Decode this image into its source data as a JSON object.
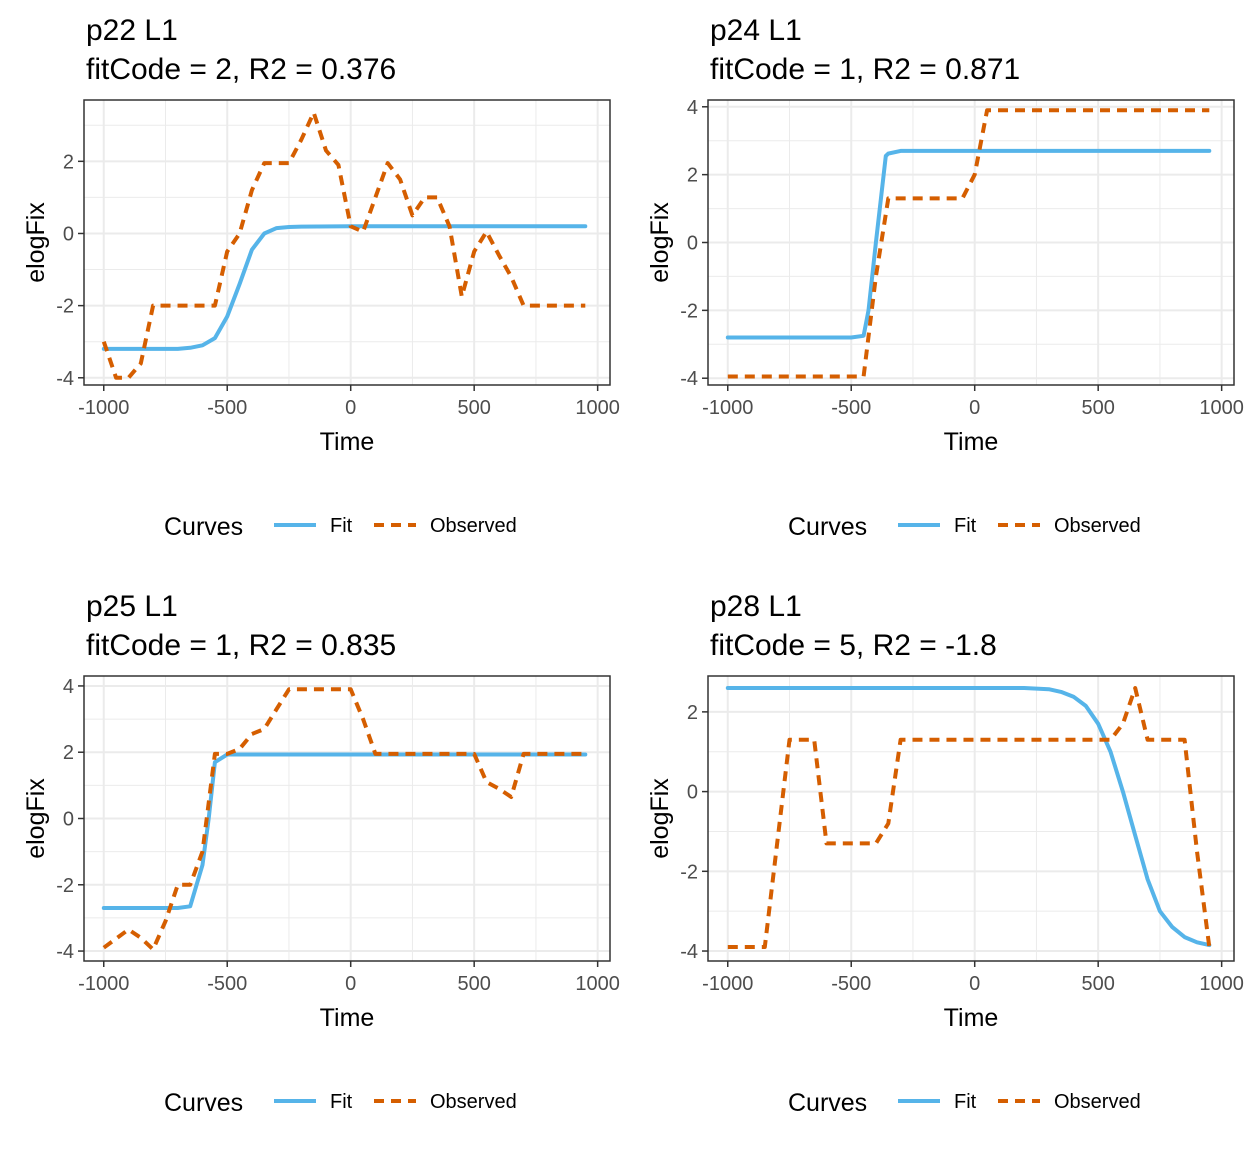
{
  "x_label": "Time",
  "y_label": "elogFix",
  "legend": {
    "title": "Curves",
    "fit_label": "Fit",
    "observed_label": "Observed",
    "placement": "bottom"
  },
  "colors": {
    "fit": "#56B4E9",
    "observed": "#D55E00",
    "grid": "#EBEBEB",
    "axis": "#333333"
  },
  "chart_data": [
    {
      "type": "line",
      "title": "p22 L1",
      "subtitle": "fitCode = 2, R2 = 0.376",
      "xlabel": "Time",
      "ylabel": "elogFix",
      "xlim": [
        -1080,
        1050
      ],
      "ylim": [
        -4.2,
        3.7
      ],
      "x_ticks": [
        -1000,
        -500,
        0,
        500,
        1000
      ],
      "y_ticks": [
        -4,
        -2,
        0,
        2
      ],
      "grid": true,
      "legend_position": "bottom",
      "series": [
        {
          "name": "Fit",
          "style": "solid",
          "x": [
            -1000,
            -900,
            -800,
            -700,
            -650,
            -600,
            -550,
            -500,
            -450,
            -400,
            -350,
            -300,
            -250,
            -200,
            0,
            950
          ],
          "y": [
            -3.2,
            -3.2,
            -3.2,
            -3.2,
            -3.17,
            -3.1,
            -2.9,
            -2.3,
            -1.4,
            -0.45,
            0.0,
            0.15,
            0.18,
            0.19,
            0.2,
            0.2
          ]
        },
        {
          "name": "Observed",
          "style": "dashed",
          "x": [
            -1000,
            -950,
            -900,
            -850,
            -800,
            -750,
            -700,
            -650,
            -600,
            -550,
            -500,
            -450,
            -400,
            -350,
            -300,
            -250,
            -200,
            -150,
            -100,
            -50,
            0,
            50,
            100,
            150,
            200,
            250,
            300,
            350,
            400,
            450,
            500,
            550,
            600,
            650,
            700,
            750,
            800,
            850,
            900,
            950
          ],
          "y": [
            -3.0,
            -4.0,
            -4.0,
            -3.6,
            -2.0,
            -2.0,
            -2.0,
            -2.0,
            -2.0,
            -2.0,
            -0.5,
            0.0,
            1.2,
            1.95,
            1.95,
            1.95,
            2.6,
            3.35,
            2.3,
            1.9,
            0.2,
            0.05,
            1.0,
            1.95,
            1.5,
            0.5,
            1.0,
            1.0,
            0.2,
            -1.75,
            -0.5,
            0.05,
            -0.6,
            -1.2,
            -2.0,
            -2.0,
            -2.0,
            -2.0,
            -2.0,
            -2.0
          ]
        }
      ]
    },
    {
      "type": "line",
      "title": "p24 L1",
      "subtitle": "fitCode = 1, R2 = 0.871",
      "xlabel": "Time",
      "ylabel": "elogFix",
      "xlim": [
        -1080,
        1050
      ],
      "ylim": [
        -4.2,
        4.2
      ],
      "x_ticks": [
        -1000,
        -500,
        0,
        500,
        1000
      ],
      "y_ticks": [
        -4,
        -2,
        0,
        2,
        4
      ],
      "grid": true,
      "legend_position": "bottom",
      "series": [
        {
          "name": "Fit",
          "style": "solid",
          "x": [
            -1000,
            -500,
            -450,
            -430,
            -400,
            -360,
            -350,
            -300,
            0,
            950
          ],
          "y": [
            -2.8,
            -2.8,
            -2.75,
            -2.0,
            0.0,
            2.55,
            2.62,
            2.7,
            2.7,
            2.7
          ]
        },
        {
          "name": "Observed",
          "style": "dashed",
          "x": [
            -1000,
            -450,
            -400,
            -350,
            -300,
            -250,
            -200,
            -150,
            -100,
            -50,
            0,
            50,
            100,
            500,
            950
          ],
          "y": [
            -3.95,
            -3.95,
            -1.0,
            1.3,
            1.3,
            1.3,
            1.3,
            1.3,
            1.3,
            1.3,
            2.0,
            3.9,
            3.9,
            3.9,
            3.9
          ]
        }
      ]
    },
    {
      "type": "line",
      "title": "p25 L1",
      "subtitle": "fitCode = 1, R2 = 0.835",
      "xlabel": "Time",
      "ylabel": "elogFix",
      "xlim": [
        -1080,
        1050
      ],
      "ylim": [
        -4.3,
        4.3
      ],
      "x_ticks": [
        -1000,
        -500,
        0,
        500,
        1000
      ],
      "y_ticks": [
        -4,
        -2,
        0,
        2,
        4
      ],
      "grid": true,
      "legend_position": "bottom",
      "series": [
        {
          "name": "Fit",
          "style": "solid",
          "x": [
            -1000,
            -700,
            -650,
            -600,
            -575,
            -550,
            -500,
            0,
            950
          ],
          "y": [
            -2.7,
            -2.7,
            -2.65,
            -1.4,
            0.0,
            1.7,
            1.93,
            1.93,
            1.93
          ]
        },
        {
          "name": "Observed",
          "style": "dashed",
          "x": [
            -1000,
            -900,
            -850,
            -800,
            -750,
            -700,
            -650,
            -600,
            -550,
            -500,
            -450,
            -400,
            -350,
            -300,
            -250,
            -200,
            -150,
            -100,
            -50,
            0,
            50,
            100,
            150,
            200,
            250,
            300,
            350,
            400,
            450,
            500,
            550,
            600,
            650,
            700,
            750,
            800,
            850,
            900,
            950
          ],
          "y": [
            -3.9,
            -3.35,
            -3.6,
            -3.95,
            -3.1,
            -2.0,
            -2.0,
            -1.0,
            1.95,
            1.95,
            2.1,
            2.55,
            2.7,
            3.3,
            3.9,
            3.9,
            3.9,
            3.9,
            3.9,
            3.9,
            3.0,
            1.95,
            1.95,
            1.95,
            1.95,
            1.95,
            1.95,
            1.95,
            1.95,
            1.95,
            1.1,
            0.9,
            0.65,
            1.95,
            1.95,
            1.95,
            1.95,
            1.95,
            1.95
          ]
        }
      ]
    },
    {
      "type": "line",
      "title": "p28 L1",
      "subtitle": "fitCode = 5, R2 = -1.8",
      "xlabel": "Time",
      "ylabel": "elogFix",
      "xlim": [
        -1080,
        1050
      ],
      "ylim": [
        -4.25,
        2.9
      ],
      "x_ticks": [
        -1000,
        -500,
        0,
        500,
        1000
      ],
      "y_ticks": [
        -4,
        -2,
        0,
        2
      ],
      "grid": true,
      "legend_position": "bottom",
      "series": [
        {
          "name": "Fit",
          "style": "solid",
          "x": [
            -1000,
            200,
            300,
            350,
            400,
            450,
            500,
            550,
            600,
            650,
            700,
            750,
            800,
            850,
            900,
            950
          ],
          "y": [
            2.6,
            2.6,
            2.57,
            2.5,
            2.38,
            2.15,
            1.7,
            1.0,
            0.0,
            -1.1,
            -2.2,
            -3.0,
            -3.4,
            -3.65,
            -3.78,
            -3.85
          ]
        },
        {
          "name": "Observed",
          "style": "dashed",
          "x": [
            -1000,
            -850,
            -750,
            -700,
            -650,
            -600,
            -550,
            -500,
            -450,
            -400,
            -350,
            -300,
            -250,
            -200,
            0,
            200,
            500,
            550,
            600,
            650,
            700,
            750,
            800,
            850,
            900,
            950
          ],
          "y": [
            -3.9,
            -3.9,
            1.3,
            1.3,
            1.3,
            -1.3,
            -1.3,
            -1.3,
            -1.3,
            -1.3,
            -0.8,
            1.3,
            1.3,
            1.3,
            1.3,
            1.3,
            1.3,
            1.3,
            1.7,
            2.6,
            1.3,
            1.3,
            1.3,
            1.3,
            -1.5,
            -3.9
          ]
        }
      ]
    }
  ]
}
